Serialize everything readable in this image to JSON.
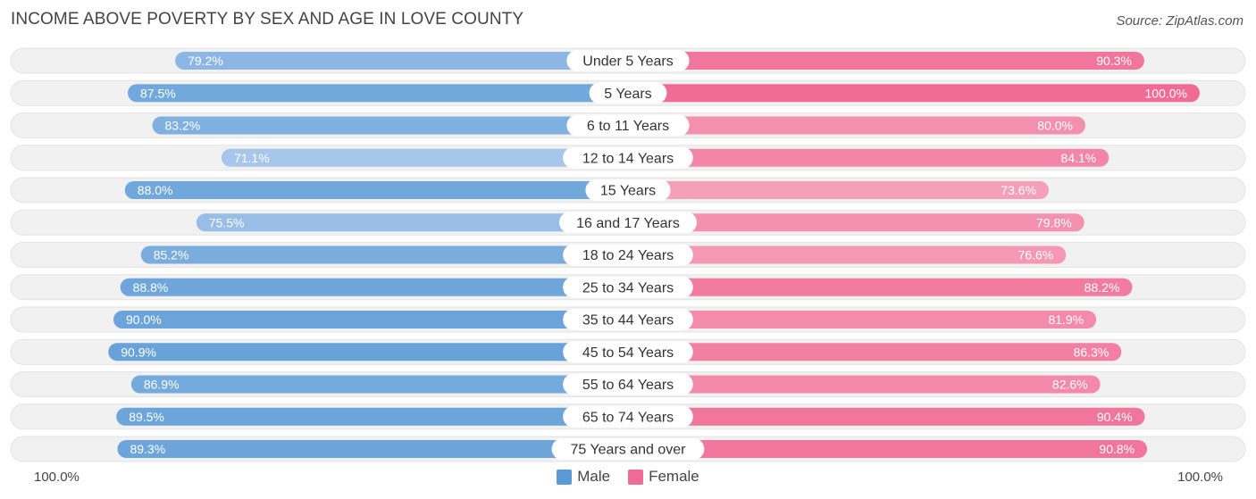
{
  "header": {
    "title": "INCOME ABOVE POVERTY BY SEX AND AGE IN LOVE COUNTY",
    "source": "Source: ZipAtlas.com"
  },
  "axis": {
    "left_label": "100.0%",
    "right_label": "100.0%"
  },
  "legend": {
    "male_label": "Male",
    "female_label": "Female"
  },
  "colors": {
    "male_strong": "#5b9bd5",
    "male_light": "#a9c8ec",
    "female_strong": "#f06b96",
    "female_light": "#f7a8c0",
    "track": "#f1f1f1"
  },
  "chart_data": {
    "type": "bar",
    "orientation": "horizontal-diverging",
    "title": "INCOME ABOVE POVERTY BY SEX AND AGE IN LOVE COUNTY",
    "categories": [
      "Under 5 Years",
      "5 Years",
      "6 to 11 Years",
      "12 to 14 Years",
      "15 Years",
      "16 and 17 Years",
      "18 to 24 Years",
      "25 to 34 Years",
      "35 to 44 Years",
      "45 to 54 Years",
      "55 to 64 Years",
      "65 to 74 Years",
      "75 Years and over"
    ],
    "series": [
      {
        "name": "Male",
        "values": [
          79.2,
          87.5,
          83.2,
          71.1,
          88.0,
          75.5,
          85.2,
          88.8,
          90.0,
          90.9,
          86.9,
          89.5,
          89.3
        ]
      },
      {
        "name": "Female",
        "values": [
          90.3,
          100.0,
          80.0,
          84.1,
          73.6,
          79.8,
          76.6,
          88.2,
          81.9,
          86.3,
          82.6,
          90.4,
          90.8
        ]
      }
    ],
    "value_labels": {
      "male": [
        "79.2%",
        "87.5%",
        "83.2%",
        "71.1%",
        "88.0%",
        "75.5%",
        "85.2%",
        "88.8%",
        "90.0%",
        "90.9%",
        "86.9%",
        "89.5%",
        "89.3%"
      ],
      "female": [
        "90.3%",
        "100.0%",
        "80.0%",
        "84.1%",
        "73.6%",
        "79.8%",
        "76.6%",
        "88.2%",
        "81.9%",
        "86.3%",
        "82.6%",
        "90.4%",
        "90.8%"
      ]
    },
    "xlim": [
      0,
      100
    ],
    "legend_position": "bottom-center"
  }
}
